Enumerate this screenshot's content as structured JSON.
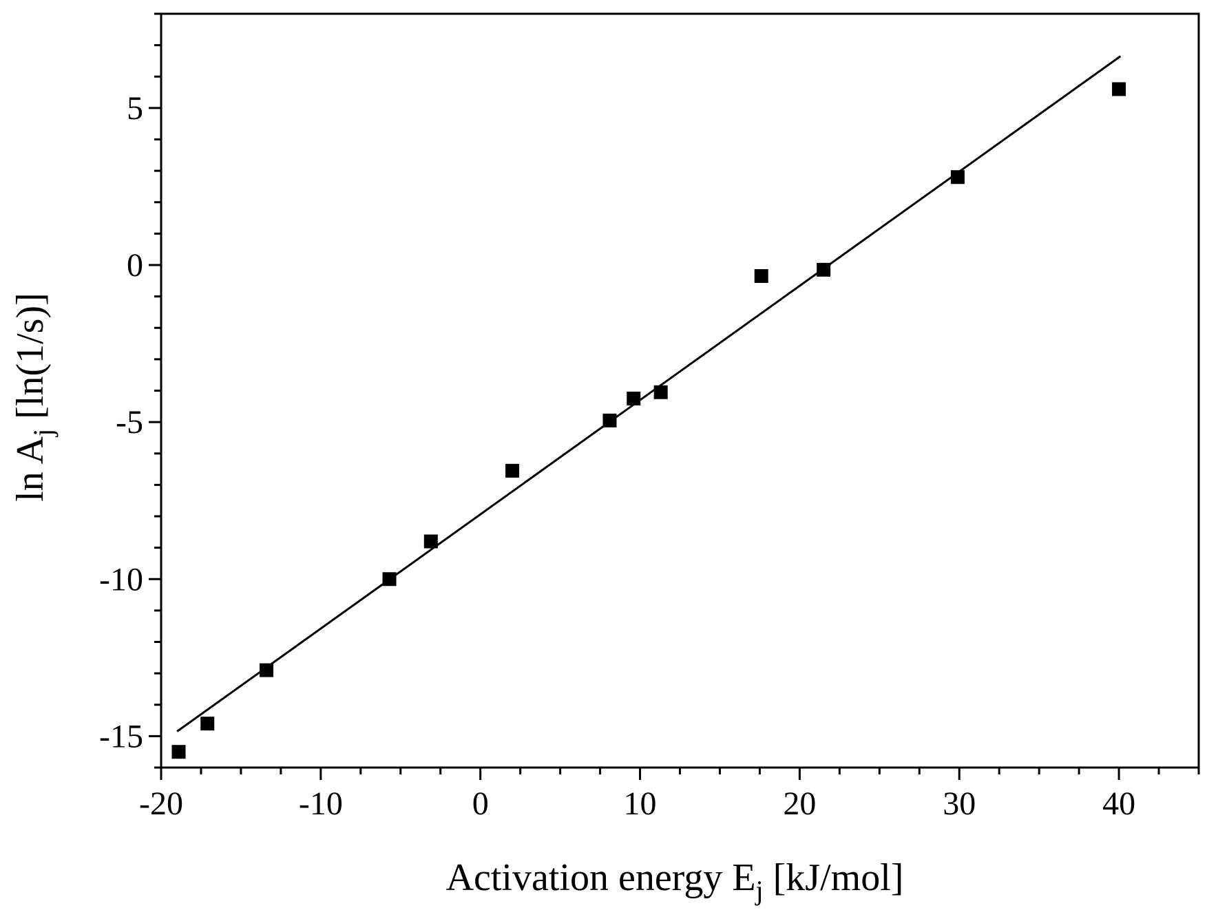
{
  "chart_data": {
    "type": "scatter",
    "title": "",
    "xlabel": {
      "main": "Activation energy E",
      "sub": "j",
      "tail": " [kJ/mol]"
    },
    "ylabel": {
      "main": "ln A",
      "sub": "j",
      "tail": " [ln(1/s)]"
    },
    "xlim": [
      -20,
      45
    ],
    "ylim": [
      -16,
      8
    ],
    "x_ticks": [
      -20,
      -10,
      0,
      10,
      20,
      30,
      40
    ],
    "x_tick_labels": [
      "-20",
      "-10",
      "0",
      "10",
      "20",
      "30",
      "40"
    ],
    "y_ticks": [
      -15,
      -10,
      -5,
      0,
      5
    ],
    "y_tick_labels": [
      "-15",
      "-10",
      "-5",
      "0",
      "5"
    ],
    "x_minor_step": 2.5,
    "y_minor_step": 1,
    "grid": false,
    "points": [
      {
        "x": -18.9,
        "y": -15.5
      },
      {
        "x": -17.1,
        "y": -14.6
      },
      {
        "x": -13.4,
        "y": -12.9
      },
      {
        "x": -5.7,
        "y": -10.0
      },
      {
        "x": -3.1,
        "y": -8.8
      },
      {
        "x": 2.0,
        "y": -6.55
      },
      {
        "x": 8.1,
        "y": -4.95
      },
      {
        "x": 9.6,
        "y": -4.25
      },
      {
        "x": 11.3,
        "y": -4.05
      },
      {
        "x": 17.6,
        "y": -0.35
      },
      {
        "x": 21.5,
        "y": -0.15
      },
      {
        "x": 29.9,
        "y": 2.8
      },
      {
        "x": 40.0,
        "y": 5.6
      }
    ],
    "fit_line": {
      "x": [
        -19,
        40.1
      ],
      "y": [
        -14.85,
        6.65
      ]
    },
    "marker": "square",
    "color": "#000000"
  }
}
